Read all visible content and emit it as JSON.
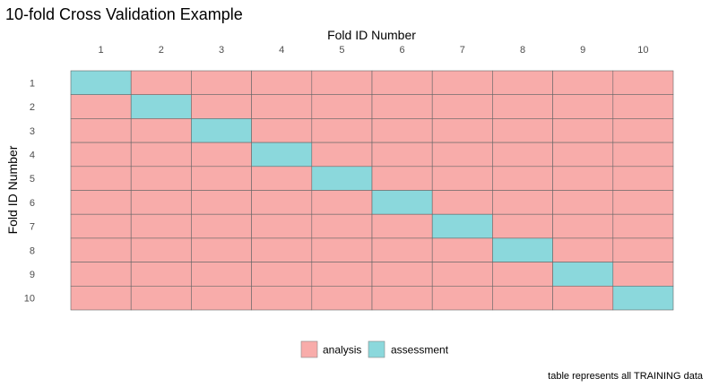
{
  "chart_data": {
    "type": "heatmap",
    "title": "10-fold Cross Validation Example",
    "xlabel": "Fold ID Number",
    "ylabel": "Fold ID Number",
    "x_categories": [
      "1",
      "2",
      "3",
      "4",
      "5",
      "6",
      "7",
      "8",
      "9",
      "10"
    ],
    "y_categories": [
      "1",
      "2",
      "3",
      "4",
      "5",
      "6",
      "7",
      "8",
      "9",
      "10"
    ],
    "x_axis_position": "top",
    "cell_rule": "assessment where row fold equals column fold, analysis otherwise",
    "cells": [
      [
        "assessment",
        "analysis",
        "analysis",
        "analysis",
        "analysis",
        "analysis",
        "analysis",
        "analysis",
        "analysis",
        "analysis"
      ],
      [
        "analysis",
        "assessment",
        "analysis",
        "analysis",
        "analysis",
        "analysis",
        "analysis",
        "analysis",
        "analysis",
        "analysis"
      ],
      [
        "analysis",
        "analysis",
        "assessment",
        "analysis",
        "analysis",
        "analysis",
        "analysis",
        "analysis",
        "analysis",
        "analysis"
      ],
      [
        "analysis",
        "analysis",
        "analysis",
        "assessment",
        "analysis",
        "analysis",
        "analysis",
        "analysis",
        "analysis",
        "analysis"
      ],
      [
        "analysis",
        "analysis",
        "analysis",
        "analysis",
        "assessment",
        "analysis",
        "analysis",
        "analysis",
        "analysis",
        "analysis"
      ],
      [
        "analysis",
        "analysis",
        "analysis",
        "analysis",
        "analysis",
        "assessment",
        "analysis",
        "analysis",
        "analysis",
        "analysis"
      ],
      [
        "analysis",
        "analysis",
        "analysis",
        "analysis",
        "analysis",
        "analysis",
        "assessment",
        "analysis",
        "analysis",
        "analysis"
      ],
      [
        "analysis",
        "analysis",
        "analysis",
        "analysis",
        "analysis",
        "analysis",
        "analysis",
        "assessment",
        "analysis",
        "analysis"
      ],
      [
        "analysis",
        "analysis",
        "analysis",
        "analysis",
        "analysis",
        "analysis",
        "analysis",
        "analysis",
        "assessment",
        "analysis"
      ],
      [
        "analysis",
        "analysis",
        "analysis",
        "analysis",
        "analysis",
        "analysis",
        "analysis",
        "analysis",
        "analysis",
        "assessment"
      ]
    ],
    "legend": {
      "placement": "bottom-center",
      "entries": [
        {
          "label": "analysis",
          "color": "#F8ACAA"
        },
        {
          "label": "assessment",
          "color": "#8BD8DC"
        }
      ]
    },
    "caption": "table represents all TRAINING data",
    "grid": false
  },
  "colors": {
    "analysis": "#F8ACAA",
    "assessment": "#8BD8DC",
    "cell_border": "#666666"
  }
}
